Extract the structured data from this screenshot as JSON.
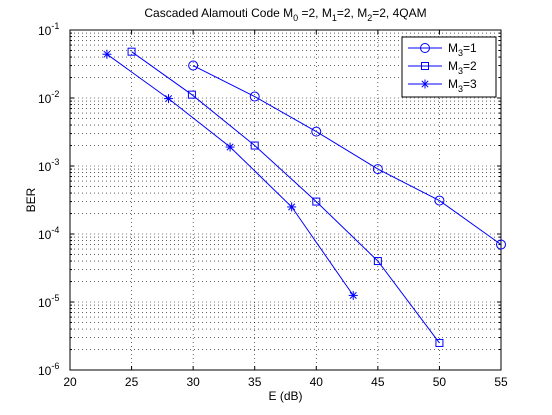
{
  "chart_data": {
    "type": "line",
    "title": {
      "base": "Cascaded Alamouti Code M",
      "parts": [
        {
          "sub": "0",
          "text": " =2, M"
        },
        {
          "sub": "1",
          "text": "=2, M"
        },
        {
          "sub": "2",
          "text": "=2, 4QAM"
        }
      ]
    },
    "xlabel": "E (dB)",
    "ylabel": "BER",
    "xlim": [
      20,
      55
    ],
    "ylim": [
      1e-06,
      0.1
    ],
    "yscale": "log",
    "grid": true,
    "legend_position": "top-right",
    "xticks": [
      20,
      25,
      30,
      35,
      40,
      45,
      50,
      55
    ],
    "yticks": [
      {
        "value": 1e-06,
        "exp": "-6"
      },
      {
        "value": 1e-05,
        "exp": "-5"
      },
      {
        "value": 0.0001,
        "exp": "-4"
      },
      {
        "value": 0.001,
        "exp": "-3"
      },
      {
        "value": 0.01,
        "exp": "-2"
      },
      {
        "value": 0.1,
        "exp": "-1"
      }
    ],
    "tick_base": "10",
    "line_color": "#0000ff",
    "series": [
      {
        "name_prefix": "M",
        "name_sub": "3",
        "name_suffix": "=1",
        "marker": "circle",
        "x": [
          30,
          35,
          40,
          45,
          50,
          55
        ],
        "y": [
          0.03,
          0.0105,
          0.0032,
          0.0009,
          0.00031,
          7e-05
        ]
      },
      {
        "name_prefix": "M",
        "name_sub": "3",
        "name_suffix": "=2",
        "marker": "square",
        "x": [
          25,
          29.9,
          35,
          40,
          45,
          50
        ],
        "y": [
          0.048,
          0.0112,
          0.002,
          0.0003,
          4e-05,
          2.5e-06
        ]
      },
      {
        "name_prefix": "M",
        "name_sub": "3",
        "name_suffix": "=3",
        "marker": "star",
        "x": [
          23,
          28,
          33,
          38,
          43
        ],
        "y": [
          0.044,
          0.0098,
          0.0019,
          0.00025,
          1.25e-05
        ]
      }
    ]
  }
}
